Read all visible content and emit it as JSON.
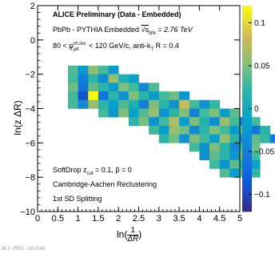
{
  "annotations": {
    "title": "ALICE Preliminary (Data - Embedded)",
    "system_prefix": "PbPb - PYTHIA Embedded ",
    "sqrt_s": "√s",
    "sqrt_s_sub": "NN",
    "energy": " = 2.76 TeV",
    "pt_range_prefix": "80 < p",
    "pt_sup": "ch,rec",
    "pt_sub": "T,jet",
    "pt_range_suffix": " < 120 GeV/c, anti-k",
    "antikt_sub": "T",
    "radius": " R = 0.4",
    "softdrop_prefix": "SoftDrop z",
    "softdrop_sub": "cut",
    "softdrop_suffix": " = 0.1, β = 0",
    "recluster": "Cambridge-Aachen Reclustering",
    "splitting": "1st SD Splitting",
    "footer": "ALI-PREL-161546"
  },
  "chart_data": {
    "type": "heatmap",
    "xlabel_prefix": "ln(",
    "xlabel_num": "1",
    "xlabel_den": "ΔR",
    "xlabel_suffix": ")",
    "ylabel": "ln(z ΔR)",
    "xlim": [
      0,
      5
    ],
    "ylim": [
      -10,
      2
    ],
    "x_ticks": [
      "0",
      "0.5",
      "1",
      "1.5",
      "2",
      "2.5",
      "3",
      "3.5",
      "4",
      "4.5",
      "5"
    ],
    "y_ticks": [
      "−10",
      "−8",
      "−6",
      "−4",
      "−2",
      "0",
      "2"
    ],
    "zlim": [
      -0.12,
      0.12
    ],
    "z_ticks": [
      "−0.1",
      "−0.05",
      "0",
      "0.05",
      "0.1"
    ],
    "bin_width": 0.25,
    "bin_height": 0.5,
    "rows": [
      {
        "y": -2.0,
        "x0": 0.75,
        "values": [
          0.035,
          -0.025,
          0.055,
          0.03,
          -0.02
        ]
      },
      {
        "y": -2.5,
        "x0": 0.75,
        "values": [
          0.03,
          -0.05,
          0.02,
          -0.035,
          0.06,
          0.01,
          -0.015
        ]
      },
      {
        "y": -3.0,
        "x0": 0.75,
        "values": [
          0.045,
          -0.06,
          0.04,
          0.02,
          -0.02,
          0.05,
          0.03,
          -0.04,
          0.035
        ]
      },
      {
        "y": -3.5,
        "x0": 0.75,
        "values": [
          0.03,
          -0.09,
          0.12,
          -0.06,
          0.02,
          -0.03,
          0.05,
          0.02,
          -0.02,
          0.03,
          0.045,
          -0.025
        ]
      },
      {
        "y": -4.0,
        "x0": 0.75,
        "values": [
          0.03,
          -0.04,
          0.06,
          0.02,
          -0.015,
          0.035,
          0.01,
          -0.05,
          0.05,
          0.02,
          -0.03,
          0.08,
          0.03,
          -0.03,
          0.025
        ]
      },
      {
        "y": -4.5,
        "x0": 1.5,
        "values": [
          0.03,
          -0.025,
          0.05,
          -0.015,
          0.035,
          0.06,
          -0.03,
          0.02,
          0.05,
          -0.045,
          0.03,
          0.05,
          -0.02,
          0.04
        ]
      },
      {
        "y": -5.0,
        "x0": 2.25,
        "values": [
          0.02,
          0.05,
          -0.03,
          0.03,
          0.07,
          -0.02,
          0.05,
          0.015,
          -0.035,
          0.06,
          0.03,
          -0.05,
          0.03
        ]
      },
      {
        "y": -5.5,
        "x0": 2.75,
        "values": [
          0.03,
          -0.02,
          0.06,
          0.045,
          -0.04,
          0.02,
          0.05,
          0.03,
          -0.02,
          0.035,
          -0.06,
          0.02
        ]
      },
      {
        "y": -6.0,
        "x0": 3.0,
        "values": [
          0.02,
          0.045,
          -0.03,
          0.05,
          0.03,
          -0.02,
          0.06,
          0.02,
          -0.035,
          0.04,
          0.025,
          -0.05
        ]
      },
      {
        "y": -6.5,
        "x0": 3.75,
        "values": [
          0.03,
          -0.03,
          0.05,
          0.02,
          -0.04,
          0.03,
          0.045
        ]
      },
      {
        "y": -7.0,
        "x0": 4.0,
        "values": [
          -0.035,
          0.04,
          0.02,
          -0.025,
          0.05,
          0.03
        ]
      },
      {
        "y": -7.5,
        "x0": 4.25,
        "values": [
          0.03,
          -0.03,
          0.04,
          0.02,
          -0.015
        ]
      },
      {
        "y": -8.0,
        "x0": 4.5,
        "values": [
          0.035,
          -0.02,
          0.04,
          0.025
        ]
      }
    ]
  }
}
